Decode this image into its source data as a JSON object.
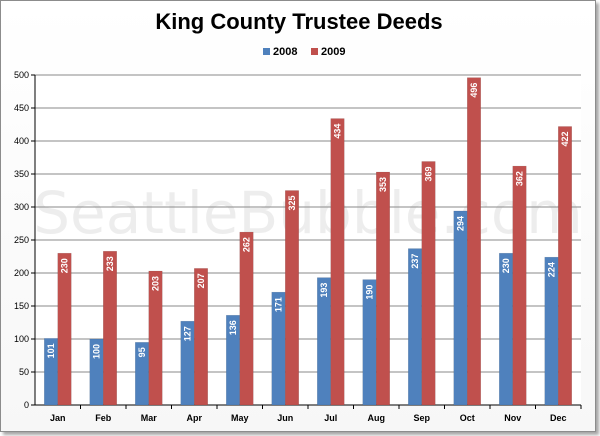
{
  "chart_data": {
    "type": "bar",
    "title": "King County Trustee Deeds",
    "categories": [
      "Jan",
      "Feb",
      "Mar",
      "Apr",
      "May",
      "Jun",
      "Jul",
      "Aug",
      "Sep",
      "Oct",
      "Nov",
      "Dec"
    ],
    "series": [
      {
        "name": "2008",
        "color": "#4f81bd",
        "values": [
          101,
          100,
          95,
          127,
          136,
          171,
          193,
          190,
          237,
          294,
          230,
          224
        ]
      },
      {
        "name": "2009",
        "color": "#c0504d",
        "values": [
          230,
          233,
          203,
          207,
          262,
          325,
          434,
          353,
          369,
          496,
          362,
          422
        ]
      }
    ],
    "ylim": [
      0,
      500
    ],
    "yticks": [
      0,
      50,
      100,
      150,
      200,
      250,
      300,
      350,
      400,
      450,
      500
    ],
    "grid": true,
    "legend": "top-center",
    "data_labels": true,
    "watermark": "SeattleBubble.com"
  }
}
